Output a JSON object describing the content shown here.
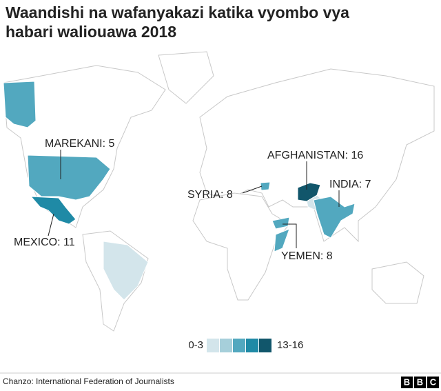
{
  "title": "Waandishi na wafanyakazi katika vyombo vya habari waliouawa 2018",
  "countries": [
    {
      "label": "MAREKANI: 5",
      "value": 5,
      "color": "#52a8bf"
    },
    {
      "label": "MEXICO: 11",
      "value": 11,
      "color": "#1f8aa6"
    },
    {
      "label": "SYRIA: 8",
      "value": 8,
      "color": "#52a8bf"
    },
    {
      "label": "AFGHANISTAN: 16",
      "value": 16,
      "color": "#11566b"
    },
    {
      "label": "INDIA: 7",
      "value": 7,
      "color": "#52a8bf"
    },
    {
      "label": "YEMEN: 8",
      "value": 8,
      "color": "#52a8bf"
    }
  ],
  "legend": {
    "low": "0-3",
    "high": "13-16",
    "colors": [
      "#d3e5eb",
      "#a6cfda",
      "#52a8bf",
      "#1f8aa6",
      "#11566b"
    ]
  },
  "source": "Chanzo: International Federation of Journalists",
  "logo": [
    "B",
    "B",
    "C"
  ]
}
